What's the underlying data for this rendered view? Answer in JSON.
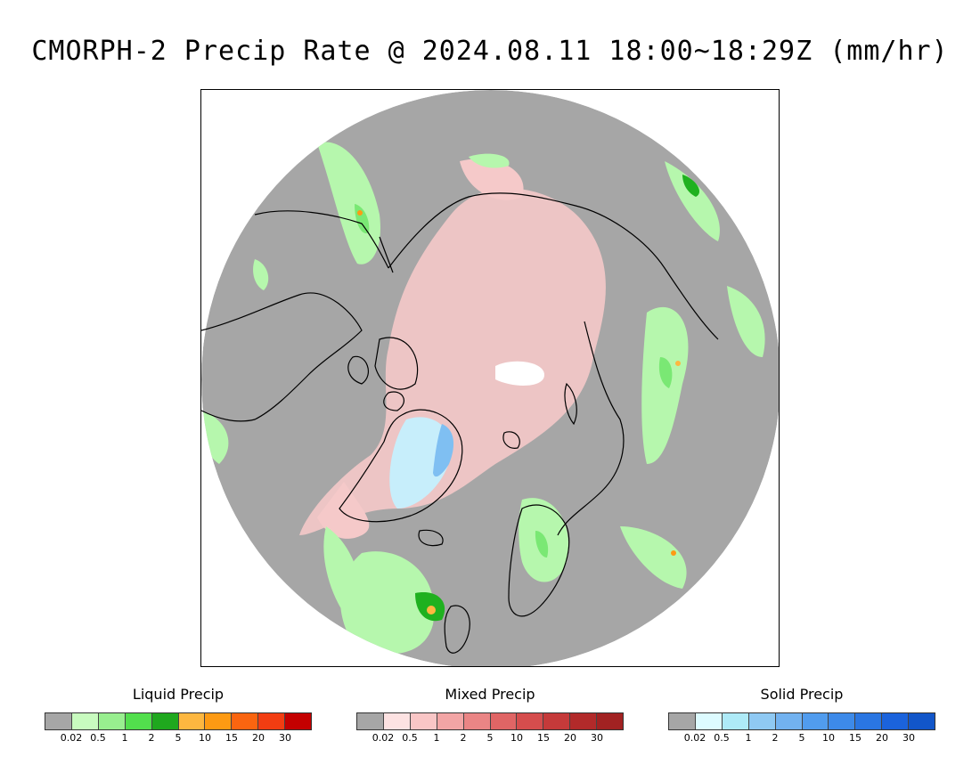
{
  "title": "CMORPH-2 Precip Rate @ 2024.08.11 18:00~18:29Z (mm/hr)",
  "map": {
    "type": "north-polar-stereographic",
    "colors": {
      "background": "#a6a6a6",
      "liquid_light": "#b6f7ad",
      "liquid_mid": "#7ae874",
      "liquid_heavy": "#1fb11f",
      "mixed_light": "#f5c9c9",
      "solid_light": "#c7eefb",
      "solid_mid": "#7fbff2",
      "no_data": "#ffffff",
      "coast": "#000000"
    }
  },
  "legends": [
    {
      "title": "Liquid Precip",
      "ticks": [
        "0.02",
        "0.5",
        "1",
        "2",
        "5",
        "10",
        "15",
        "20",
        "30"
      ],
      "colors": [
        "#a6a6a6",
        "#c8fbbf",
        "#98ef8f",
        "#52df4d",
        "#1fa81e",
        "#fdb740",
        "#fd9a13",
        "#fa6510",
        "#f23d12",
        "#c40000"
      ]
    },
    {
      "title": "Mixed Precip",
      "ticks": [
        "0.02",
        "0.5",
        "1",
        "2",
        "5",
        "10",
        "15",
        "20",
        "30"
      ],
      "colors": [
        "#a6a6a6",
        "#fde2e2",
        "#f9c6c6",
        "#f2a5a5",
        "#ea8585",
        "#e06565",
        "#d54d4d",
        "#c53a3a",
        "#b22a2a",
        "#a22222"
      ]
    },
    {
      "title": "Solid Precip",
      "ticks": [
        "0.02",
        "0.5",
        "1",
        "2",
        "5",
        "10",
        "15",
        "20",
        "30"
      ],
      "colors": [
        "#a6a6a6",
        "#ddfbff",
        "#aeeaf7",
        "#8fc9f3",
        "#72b2f0",
        "#519cee",
        "#3d8ae9",
        "#2a76e2",
        "#1b63dc",
        "#1256c9"
      ]
    }
  ]
}
